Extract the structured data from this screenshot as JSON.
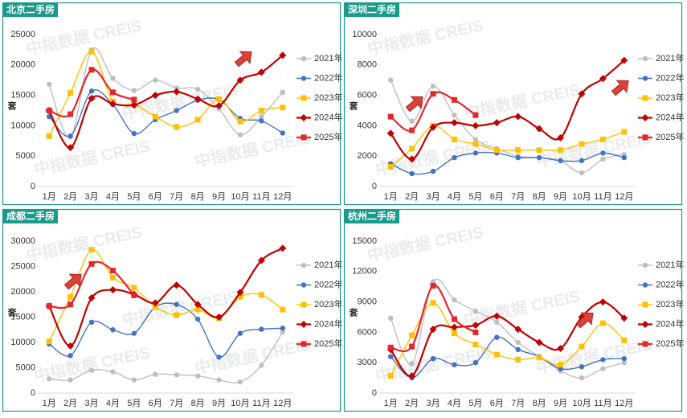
{
  "watermark": "中指数据 CREIS",
  "chart_data": [
    {
      "type": "line",
      "title": "北京二手房",
      "ylabel": "套",
      "categories": [
        "1月",
        "2月",
        "3月",
        "4月",
        "5月",
        "6月",
        "7月",
        "8月",
        "9月",
        "10月",
        "11月",
        "12月"
      ],
      "ylim": [
        0,
        25000
      ],
      "yticks": [
        0,
        5000,
        10000,
        15000,
        20000,
        25000
      ],
      "series": [
        {
          "name": "2021年",
          "color": "#bfbfbf",
          "marker": "circle",
          "values": [
            16800,
            8200,
            22500,
            17800,
            15800,
            17500,
            16200,
            16000,
            12800,
            8500,
            11500,
            15500
          ]
        },
        {
          "name": "2022年",
          "color": "#4472c4",
          "marker": "circle",
          "values": [
            11500,
            8300,
            15700,
            13500,
            8700,
            11000,
            12500,
            14200,
            14300,
            11200,
            10800,
            8800
          ]
        },
        {
          "name": "2023年",
          "color": "#ffc000",
          "marker": "square",
          "values": [
            8300,
            15400,
            22200,
            14000,
            13500,
            11500,
            9800,
            11000,
            14400,
            10700,
            12500,
            13000
          ]
        },
        {
          "name": "2024年",
          "color": "#c00000",
          "marker": "diamond",
          "values": [
            12500,
            6400,
            14500,
            13600,
            13400,
            15000,
            15600,
            14400,
            13300,
            17500,
            18800,
            21600
          ]
        },
        {
          "name": "2025年",
          "color": "#e8262a",
          "marker": "square",
          "values": [
            12500,
            11900,
            19200,
            15500,
            14300,
            null,
            null,
            null,
            null,
            null,
            null,
            null
          ]
        }
      ]
    },
    {
      "type": "line",
      "title": "深圳二手房",
      "ylabel": "套",
      "categories": [
        "1月",
        "2月",
        "3月",
        "4月",
        "5月",
        "6月",
        "7月",
        "8月",
        "9月",
        "10月",
        "11月",
        "12月"
      ],
      "ylim": [
        0,
        10000
      ],
      "yticks": [
        0,
        2000,
        4000,
        6000,
        8000,
        10000
      ],
      "series": [
        {
          "name": "2021年",
          "color": "#bfbfbf",
          "marker": "circle",
          "values": [
            7000,
            4300,
            6600,
            4700,
            3100,
            2500,
            2000,
            1900,
            1700,
            900,
            1800,
            2100
          ]
        },
        {
          "name": "2022年",
          "color": "#4472c4",
          "marker": "circle",
          "values": [
            1500,
            850,
            1000,
            1900,
            2200,
            2200,
            1900,
            1900,
            1700,
            1700,
            2200,
            1900
          ]
        },
        {
          "name": "2023年",
          "color": "#ffc000",
          "marker": "square",
          "values": [
            1300,
            2500,
            4000,
            3100,
            2800,
            2400,
            2400,
            2400,
            2400,
            2800,
            3100,
            3600
          ]
        },
        {
          "name": "2024年",
          "color": "#c00000",
          "marker": "diamond",
          "values": [
            3500,
            1800,
            3900,
            4200,
            4000,
            4200,
            4600,
            3800,
            3200,
            6100,
            7100,
            8300
          ]
        },
        {
          "name": "2025年",
          "color": "#e8262a",
          "marker": "square",
          "values": [
            4600,
            3700,
            6100,
            5700,
            4700,
            null,
            null,
            null,
            null,
            null,
            null,
            null
          ]
        }
      ]
    },
    {
      "type": "line",
      "title": "成都二手房",
      "ylabel": "套",
      "categories": [
        "1月",
        "2月",
        "3月",
        "4月",
        "5月",
        "6月",
        "7月",
        "8月",
        "9月",
        "10月",
        "11月",
        "12月"
      ],
      "ylim": [
        0,
        30000
      ],
      "yticks": [
        0,
        5000,
        10000,
        15000,
        20000,
        25000,
        30000
      ],
      "series": [
        {
          "name": "2021年",
          "color": "#bfbfbf",
          "marker": "circle",
          "values": [
            2800,
            2600,
            4500,
            4200,
            2600,
            3700,
            3600,
            3400,
            2600,
            2200,
            5500,
            12000
          ]
        },
        {
          "name": "2022年",
          "color": "#4472c4",
          "marker": "circle",
          "values": [
            9700,
            7400,
            14000,
            12500,
            11800,
            17000,
            17500,
            14600,
            7100,
            11800,
            12600,
            12800
          ]
        },
        {
          "name": "2023年",
          "color": "#ffc000",
          "marker": "square",
          "values": [
            10200,
            19000,
            28300,
            22800,
            20800,
            17000,
            15400,
            16500,
            14800,
            19000,
            19400,
            16500
          ]
        },
        {
          "name": "2024年",
          "color": "#c00000",
          "marker": "diamond",
          "values": [
            17200,
            9300,
            18800,
            20400,
            19500,
            17800,
            21300,
            17500,
            15000,
            19900,
            26200,
            28600
          ]
        },
        {
          "name": "2025年",
          "color": "#e8262a",
          "marker": "square",
          "values": [
            17200,
            17500,
            25500,
            24200,
            19300,
            null,
            null,
            null,
            null,
            null,
            null,
            null
          ]
        }
      ]
    },
    {
      "type": "line",
      "title": "杭州二手房",
      "ylabel": "套",
      "categories": [
        "1月",
        "2月",
        "3月",
        "4月",
        "5月",
        "6月",
        "7月",
        "8月",
        "9月",
        "10月",
        "11月",
        "12月"
      ],
      "ylim": [
        0,
        15000
      ],
      "yticks": [
        0,
        3000,
        6000,
        9000,
        12000,
        15000
      ],
      "series": [
        {
          "name": "2021年",
          "color": "#bfbfbf",
          "marker": "circle",
          "values": [
            7400,
            2900,
            11000,
            9200,
            8100,
            7000,
            5000,
            3600,
            2200,
            1500,
            2400,
            3000
          ]
        },
        {
          "name": "2022年",
          "color": "#4472c4",
          "marker": "circle",
          "values": [
            3600,
            1500,
            3400,
            2800,
            3000,
            5500,
            4300,
            3600,
            2400,
            2600,
            3300,
            3400
          ]
        },
        {
          "name": "2023年",
          "color": "#ffc000",
          "marker": "square",
          "values": [
            1700,
            5700,
            8900,
            5900,
            4800,
            3800,
            3300,
            3500,
            2800,
            4600,
            6900,
            5200
          ]
        },
        {
          "name": "2024年",
          "color": "#c00000",
          "marker": "diamond",
          "values": [
            4300,
            1700,
            6300,
            6500,
            6700,
            7600,
            6300,
            5000,
            4400,
            7500,
            9000,
            7400
          ]
        },
        {
          "name": "2025年",
          "color": "#e8262a",
          "marker": "square",
          "values": [
            4500,
            4600,
            10600,
            7300,
            6000,
            null,
            null,
            null,
            null,
            null,
            null,
            null
          ]
        }
      ]
    }
  ]
}
